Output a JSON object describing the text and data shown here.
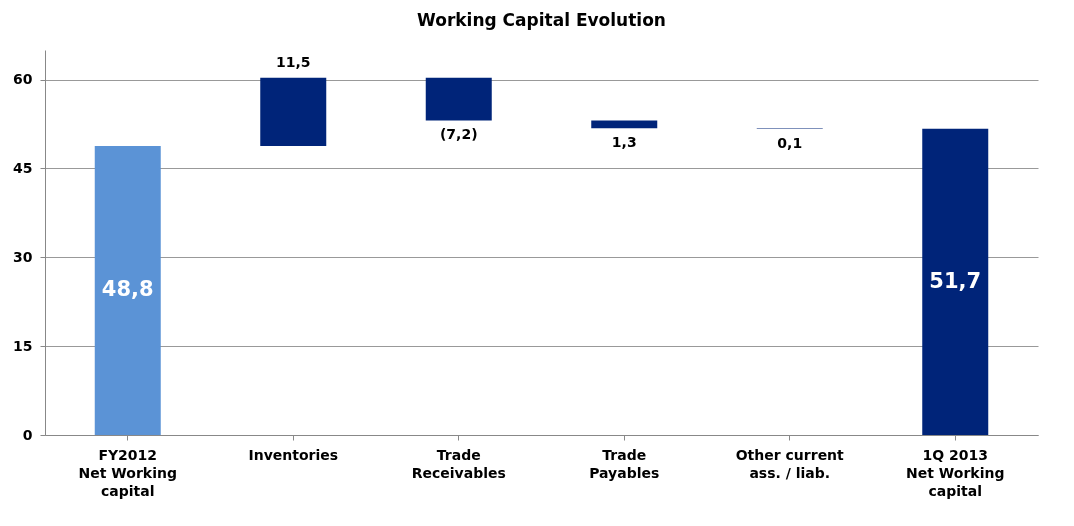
{
  "chart_data": {
    "type": "bar",
    "title": "Working Capital Evolution",
    "categories": [
      "FY2012\nNet Working\ncapital",
      "Inventories",
      "Trade\nReceivables",
      "Trade\nPayables",
      "Other current\nass. / liab.",
      "1Q 2013\nNet Working\ncapital"
    ],
    "values": [
      48.8,
      11.5,
      -7.2,
      -1.3,
      -0.1,
      51.7
    ],
    "base": [
      0,
      48.8,
      60.3,
      53.1,
      51.8,
      0
    ],
    "colors": [
      "#5b93d6",
      "#002479",
      "#002479",
      "#002479",
      "#002479",
      "#002479"
    ],
    "value_labels": [
      "48,8",
      "11,5",
      "(7,2)",
      "1,3",
      "0,1",
      "51,7"
    ],
    "ylim": [
      0,
      65
    ],
    "yticks": [
      0,
      15,
      30,
      45,
      60
    ],
    "grid": "y"
  }
}
